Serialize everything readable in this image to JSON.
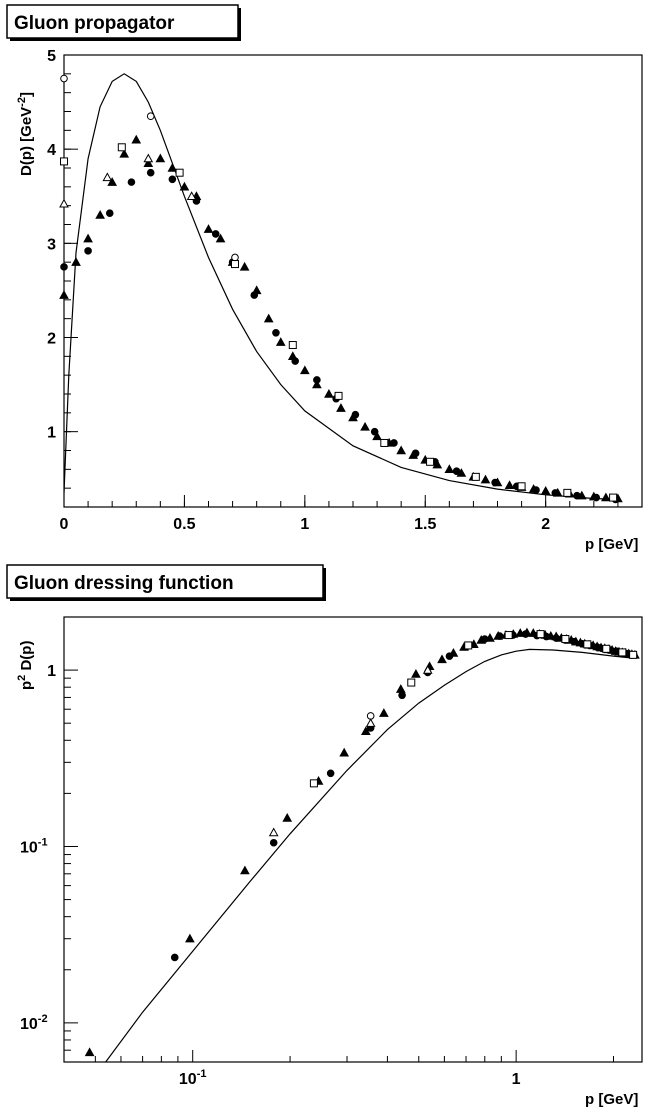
{
  "chart_data": [
    {
      "type": "scatter",
      "title": "Gluon propagator",
      "xlabel": "p [GeV]",
      "ylabel": "D(p) [GeV-2]",
      "ylabel_parts": {
        "main": "D(p) [GeV",
        "sup": "-2",
        "tail": "]"
      },
      "xlim": [
        0,
        2.4
      ],
      "ylim": [
        0.2,
        5
      ],
      "x_ticks": [
        {
          "v": 0,
          "label": "0"
        },
        {
          "v": 0.5,
          "label": "0.5"
        },
        {
          "v": 1,
          "label": "1"
        },
        {
          "v": 1.5,
          "label": "1.5"
        },
        {
          "v": 2,
          "label": "2"
        }
      ],
      "y_ticks": [
        {
          "v": 1,
          "label": "1"
        },
        {
          "v": 2,
          "label": "2"
        },
        {
          "v": 3,
          "label": "3"
        },
        {
          "v": 4,
          "label": "4"
        },
        {
          "v": 5,
          "label": "5"
        }
      ],
      "curve": [
        [
          0.0,
          0.35
        ],
        [
          0.02,
          1.6
        ],
        [
          0.05,
          2.9
        ],
        [
          0.1,
          3.9
        ],
        [
          0.15,
          4.45
        ],
        [
          0.2,
          4.72
        ],
        [
          0.25,
          4.8
        ],
        [
          0.3,
          4.72
        ],
        [
          0.35,
          4.5
        ],
        [
          0.4,
          4.2
        ],
        [
          0.45,
          3.85
        ],
        [
          0.5,
          3.5
        ],
        [
          0.6,
          2.85
        ],
        [
          0.7,
          2.3
        ],
        [
          0.8,
          1.85
        ],
        [
          0.9,
          1.5
        ],
        [
          1.0,
          1.22
        ],
        [
          1.2,
          0.85
        ],
        [
          1.4,
          0.62
        ],
        [
          1.6,
          0.48
        ],
        [
          1.8,
          0.39
        ],
        [
          2.0,
          0.33
        ],
        [
          2.2,
          0.29
        ],
        [
          2.3,
          0.28
        ]
      ],
      "series": [
        {
          "marker": "circle-filled",
          "points": [
            [
              0.0,
              2.75
            ],
            [
              0.1,
              2.92
            ],
            [
              0.19,
              3.32
            ],
            [
              0.28,
              3.65
            ],
            [
              0.36,
              3.75
            ],
            [
              0.45,
              3.68
            ],
            [
              0.55,
              3.45
            ],
            [
              0.63,
              3.1
            ],
            [
              0.7,
              2.8
            ],
            [
              0.79,
              2.45
            ],
            [
              0.88,
              2.05
            ],
            [
              0.96,
              1.75
            ],
            [
              1.05,
              1.55
            ],
            [
              1.13,
              1.35
            ],
            [
              1.21,
              1.18
            ],
            [
              1.29,
              1.0
            ],
            [
              1.37,
              0.88
            ],
            [
              1.46,
              0.77
            ],
            [
              1.54,
              0.68
            ],
            [
              1.63,
              0.58
            ],
            [
              1.71,
              0.52
            ],
            [
              1.79,
              0.46
            ],
            [
              1.88,
              0.42
            ],
            [
              1.96,
              0.38
            ],
            [
              2.04,
              0.35
            ],
            [
              2.13,
              0.32
            ],
            [
              2.21,
              0.3
            ],
            [
              2.29,
              0.28
            ]
          ]
        },
        {
          "marker": "triangle-filled",
          "points": [
            [
              0.0,
              2.45
            ],
            [
              0.05,
              2.8
            ],
            [
              0.1,
              3.05
            ],
            [
              0.15,
              3.3
            ],
            [
              0.2,
              3.65
            ],
            [
              0.25,
              3.95
            ],
            [
              0.3,
              4.1
            ],
            [
              0.35,
              3.85
            ],
            [
              0.4,
              3.9
            ],
            [
              0.45,
              3.8
            ],
            [
              0.5,
              3.6
            ],
            [
              0.55,
              3.5
            ],
            [
              0.6,
              3.15
            ],
            [
              0.65,
              3.05
            ],
            [
              0.7,
              2.8
            ],
            [
              0.75,
              2.75
            ],
            [
              0.8,
              2.5
            ],
            [
              0.85,
              2.2
            ],
            [
              0.9,
              1.95
            ],
            [
              0.95,
              1.8
            ],
            [
              1.0,
              1.65
            ],
            [
              1.05,
              1.5
            ],
            [
              1.1,
              1.4
            ],
            [
              1.15,
              1.25
            ],
            [
              1.2,
              1.15
            ],
            [
              1.25,
              1.05
            ],
            [
              1.3,
              0.95
            ],
            [
              1.35,
              0.88
            ],
            [
              1.4,
              0.8
            ],
            [
              1.45,
              0.75
            ],
            [
              1.5,
              0.7
            ],
            [
              1.55,
              0.65
            ],
            [
              1.6,
              0.6
            ],
            [
              1.65,
              0.56
            ],
            [
              1.7,
              0.52
            ],
            [
              1.75,
              0.49
            ],
            [
              1.8,
              0.46
            ],
            [
              1.85,
              0.43
            ],
            [
              1.9,
              0.41
            ],
            [
              1.95,
              0.39
            ],
            [
              2.0,
              0.37
            ],
            [
              2.05,
              0.35
            ],
            [
              2.1,
              0.34
            ],
            [
              2.15,
              0.32
            ],
            [
              2.2,
              0.31
            ],
            [
              2.25,
              0.3
            ],
            [
              2.3,
              0.29
            ]
          ]
        },
        {
          "marker": "circle-open",
          "points": [
            [
              0.0,
              4.75
            ],
            [
              0.36,
              4.35
            ],
            [
              0.71,
              2.85
            ]
          ]
        },
        {
          "marker": "square-open",
          "points": [
            [
              0.0,
              3.87
            ],
            [
              0.24,
              4.02
            ],
            [
              0.48,
              3.75
            ],
            [
              0.71,
              2.78
            ],
            [
              0.95,
              1.92
            ],
            [
              1.14,
              1.38
            ],
            [
              1.33,
              0.88
            ],
            [
              1.52,
              0.68
            ],
            [
              1.71,
              0.52
            ],
            [
              1.9,
              0.42
            ],
            [
              2.09,
              0.35
            ],
            [
              2.28,
              0.3
            ]
          ]
        },
        {
          "marker": "triangle-open",
          "points": [
            [
              0.0,
              3.42
            ],
            [
              0.18,
              3.7
            ],
            [
              0.35,
              3.9
            ],
            [
              0.53,
              3.5
            ]
          ]
        }
      ]
    },
    {
      "type": "scatter",
      "title": "Gluon dressing function",
      "xlabel": "p [GeV]",
      "ylabel": "p2 D(p)",
      "ylabel_parts": {
        "main": "p",
        "sup": "2",
        "tail": " D(p)"
      },
      "xscale": "log",
      "yscale": "log",
      "xlim": [
        0.04,
        2.45
      ],
      "ylim": [
        0.006,
        2.0
      ],
      "x_ticks": [
        {
          "v": 0.1,
          "label": "10",
          "sup": "-1"
        },
        {
          "v": 1,
          "label": "1"
        }
      ],
      "y_ticks": [
        {
          "v": 0.01,
          "label": "10",
          "sup": "-2"
        },
        {
          "v": 0.1,
          "label": "10",
          "sup": "-1"
        },
        {
          "v": 1,
          "label": "1"
        }
      ],
      "curve": [
        [
          0.05,
          0.005
        ],
        [
          0.07,
          0.0115
        ],
        [
          0.1,
          0.0255
        ],
        [
          0.15,
          0.063
        ],
        [
          0.2,
          0.118
        ],
        [
          0.3,
          0.27
        ],
        [
          0.4,
          0.46
        ],
        [
          0.5,
          0.65
        ],
        [
          0.6,
          0.82
        ],
        [
          0.7,
          0.98
        ],
        [
          0.8,
          1.12
        ],
        [
          0.9,
          1.22
        ],
        [
          1.0,
          1.28
        ],
        [
          1.1,
          1.31
        ],
        [
          1.3,
          1.3
        ],
        [
          1.6,
          1.26
        ],
        [
          2.0,
          1.2
        ],
        [
          2.3,
          1.17
        ]
      ],
      "series": [
        {
          "marker": "triangle-filled",
          "points": [
            [
              0.048,
              0.0068
            ],
            [
              0.098,
              0.03
            ],
            [
              0.145,
              0.073
            ],
            [
              0.196,
              0.145
            ],
            [
              0.245,
              0.235
            ],
            [
              0.294,
              0.34
            ],
            [
              0.343,
              0.45
            ],
            [
              0.39,
              0.57
            ],
            [
              0.44,
              0.78
            ],
            [
              0.49,
              0.95
            ],
            [
              0.54,
              1.05
            ],
            [
              0.59,
              1.15
            ],
            [
              0.64,
              1.25
            ],
            [
              0.69,
              1.35
            ],
            [
              0.74,
              1.4
            ],
            [
              0.78,
              1.48
            ],
            [
              0.83,
              1.52
            ],
            [
              0.88,
              1.56
            ],
            [
              0.93,
              1.58
            ],
            [
              0.98,
              1.6
            ],
            [
              1.03,
              1.62
            ],
            [
              1.08,
              1.63
            ],
            [
              1.13,
              1.62
            ],
            [
              1.18,
              1.6
            ],
            [
              1.23,
              1.58
            ],
            [
              1.28,
              1.56
            ],
            [
              1.33,
              1.55
            ],
            [
              1.38,
              1.52
            ],
            [
              1.43,
              1.5
            ],
            [
              1.48,
              1.48
            ],
            [
              1.53,
              1.45
            ],
            [
              1.58,
              1.43
            ],
            [
              1.63,
              1.41
            ],
            [
              1.68,
              1.39
            ],
            [
              1.73,
              1.38
            ],
            [
              1.78,
              1.36
            ],
            [
              1.83,
              1.34
            ],
            [
              1.88,
              1.33
            ],
            [
              1.93,
              1.31
            ],
            [
              1.98,
              1.3
            ],
            [
              2.03,
              1.28
            ],
            [
              2.08,
              1.27
            ],
            [
              2.13,
              1.26
            ],
            [
              2.18,
              1.25
            ],
            [
              2.23,
              1.24
            ],
            [
              2.28,
              1.23
            ],
            [
              2.33,
              1.22
            ]
          ]
        },
        {
          "marker": "circle-filled",
          "points": [
            [
              0.088,
              0.0235
            ],
            [
              0.178,
              0.105
            ],
            [
              0.267,
              0.26
            ],
            [
              0.355,
              0.47
            ],
            [
              0.444,
              0.72
            ],
            [
              0.533,
              0.97
            ],
            [
              0.622,
              1.2
            ],
            [
              0.711,
              1.37
            ],
            [
              0.8,
              1.5
            ],
            [
              0.889,
              1.56
            ],
            [
              0.978,
              1.58
            ],
            [
              1.07,
              1.6
            ],
            [
              1.16,
              1.57
            ],
            [
              1.24,
              1.55
            ],
            [
              1.33,
              1.52
            ],
            [
              1.42,
              1.48
            ],
            [
              1.51,
              1.45
            ],
            [
              1.6,
              1.41
            ],
            [
              1.69,
              1.38
            ],
            [
              1.78,
              1.35
            ],
            [
              1.87,
              1.32
            ],
            [
              1.96,
              1.3
            ],
            [
              2.04,
              1.28
            ],
            [
              2.13,
              1.26
            ],
            [
              2.22,
              1.24
            ],
            [
              2.31,
              1.22
            ]
          ]
        },
        {
          "marker": "circle-open",
          "points": [
            [
              0.355,
              0.55
            ]
          ]
        },
        {
          "marker": "square-open",
          "points": [
            [
              0.237,
              0.228
            ],
            [
              0.474,
              0.85
            ],
            [
              0.711,
              1.38
            ],
            [
              0.948,
              1.58
            ],
            [
              1.19,
              1.6
            ],
            [
              1.42,
              1.5
            ],
            [
              1.66,
              1.4
            ],
            [
              1.9,
              1.32
            ],
            [
              2.13,
              1.26
            ],
            [
              2.3,
              1.22
            ]
          ]
        },
        {
          "marker": "triangle-open",
          "points": [
            [
              0.178,
              0.12
            ],
            [
              0.355,
              0.5
            ],
            [
              0.533,
              1.0
            ]
          ]
        }
      ]
    }
  ]
}
